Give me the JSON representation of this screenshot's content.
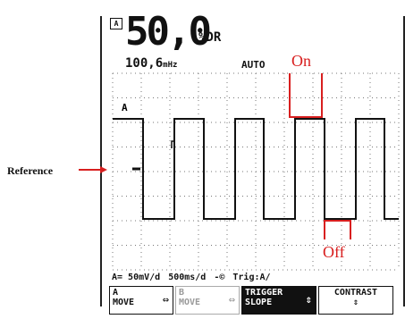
{
  "reading": {
    "box_label": "A",
    "value": "50,0",
    "unit": "%DR",
    "frequency": "100,6",
    "frequency_unit": "mHz",
    "mode": "AUTO"
  },
  "annotations": {
    "on": "On",
    "off": "Off",
    "reference": "Reference"
  },
  "trace": {
    "label": "A",
    "colors": {
      "trace": "#111111",
      "annotation": "#d81f1f",
      "grid": "#777777"
    }
  },
  "status": {
    "ch_a": "A= 50mV/d",
    "timebase": "500ms/d",
    "ref_marker": "-©",
    "trigger": "Trig:A/"
  },
  "softkeys": [
    {
      "line1": "A",
      "line2": "MOVE",
      "icon": "⇔"
    },
    {
      "line1": "B",
      "line2": "MOVE",
      "icon": "⇔"
    },
    {
      "line1": "TRIGGER",
      "line2": "SLOPE",
      "icon": "⇕"
    },
    {
      "line1": "CONTRAST",
      "line2": "⇕",
      "icon": ""
    }
  ]
}
